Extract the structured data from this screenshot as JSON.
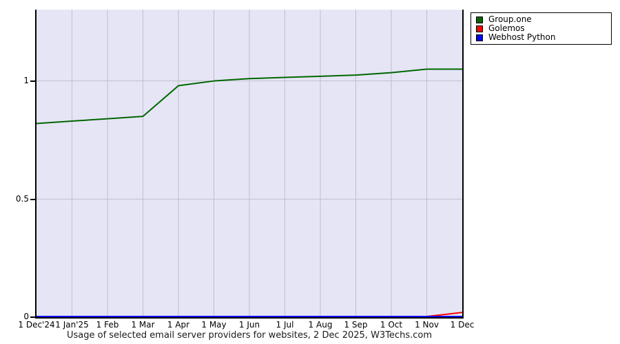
{
  "title": "Usage of selected email server providers for websites, 2 Dec 2025, W3Techs.com",
  "legend": {
    "items": [
      {
        "label": "Group.one",
        "color": "#006600"
      },
      {
        "label": "Golemos",
        "color": "#ff0000"
      },
      {
        "label": "Webhost Python",
        "color": "#0000ff"
      }
    ]
  },
  "chart_data": {
    "type": "line",
    "x": [
      "1 Dec'24",
      "1 Jan'25",
      "1 Feb",
      "1 Mar",
      "1 Apr",
      "1 May",
      "1 Jun",
      "1 Jul",
      "1 Aug",
      "1 Sep",
      "1 Oct",
      "1 Nov",
      "1 Dec"
    ],
    "series": [
      {
        "name": "Group.one",
        "color": "#006600",
        "values": [
          0.82,
          0.83,
          0.84,
          0.85,
          0.98,
          1.0,
          1.01,
          1.015,
          1.02,
          1.025,
          1.035,
          1.05,
          1.05
        ]
      },
      {
        "name": "Golemos",
        "color": "#ff0000",
        "values": [
          0,
          0,
          0,
          0,
          0,
          0,
          0,
          0,
          0,
          0,
          0,
          0,
          0.02
        ]
      },
      {
        "name": "Webhost Python",
        "color": "#0000ff",
        "values": [
          0,
          0,
          0,
          0,
          0,
          0,
          0,
          0,
          0,
          0,
          0,
          0,
          0
        ]
      }
    ],
    "yticks": [
      0,
      0.5,
      1
    ],
    "ytick_labels": [
      "0",
      "0.5",
      "1"
    ],
    "ylim": [
      0,
      1.302
    ],
    "grid": true,
    "legend_position": "top-right",
    "plot_bg": "#e5e5f6",
    "grid_color": "#c0c0c8"
  }
}
